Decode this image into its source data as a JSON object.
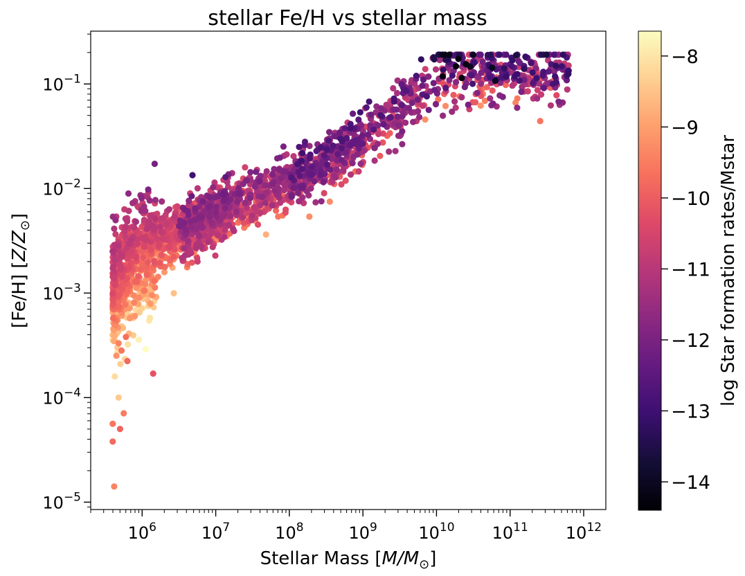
{
  "chart_data": {
    "type": "scatter",
    "title": "stellar Fe/H vs stellar mass",
    "xlabel": {
      "main": "Stellar Mass [",
      "italic": "M/M",
      "sub": "⊙",
      "close": "]"
    },
    "ylabel": {
      "main": "[Fe/H] [",
      "italic": "Z/Z",
      "sub": "⊙",
      "close": "]"
    },
    "xscale": "log",
    "yscale": "log",
    "xlim": [
      200000,
      2000000000000
    ],
    "ylim": [
      8.5e-06,
      0.32
    ],
    "x_ticks": [
      {
        "value": 1000000,
        "base": "10",
        "exp": "6"
      },
      {
        "value": 10000000,
        "base": "10",
        "exp": "7"
      },
      {
        "value": 100000000,
        "base": "10",
        "exp": "8"
      },
      {
        "value": 1000000000,
        "base": "10",
        "exp": "9"
      },
      {
        "value": 10000000000,
        "base": "10",
        "exp": "10"
      },
      {
        "value": 100000000000,
        "base": "10",
        "exp": "11"
      },
      {
        "value": 1000000000000,
        "base": "10",
        "exp": "12"
      }
    ],
    "y_ticks": [
      {
        "value": 1e-05,
        "base": "10",
        "exp": "−5"
      },
      {
        "value": 0.0001,
        "base": "10",
        "exp": "−4"
      },
      {
        "value": 0.001,
        "base": "10",
        "exp": "−3"
      },
      {
        "value": 0.01,
        "base": "10",
        "exp": "−2"
      },
      {
        "value": 0.1,
        "base": "10",
        "exp": "−1"
      }
    ],
    "colorbar": {
      "label": "log Star formation rates/Mstar",
      "colormap": "magma",
      "range": [
        -14.4,
        -7.65
      ],
      "ticks": [
        {
          "value": -8,
          "label": "−8"
        },
        {
          "value": -9,
          "label": "−9"
        },
        {
          "value": -10,
          "label": "−10"
        },
        {
          "value": -11,
          "label": "−11"
        },
        {
          "value": -12,
          "label": "−12"
        },
        {
          "value": -13,
          "label": "−13"
        },
        {
          "value": -14,
          "label": "−14"
        }
      ]
    },
    "magma_stops": [
      "#000004",
      "#140e36",
      "#3b0f70",
      "#641a80",
      "#8c2981",
      "#b73779",
      "#de4968",
      "#f7705c",
      "#fe9f6d",
      "#fecf92",
      "#fcfdbf"
    ],
    "trend": [
      [
        5.6,
        -3.0
      ],
      [
        5.8,
        -2.75
      ],
      [
        6.0,
        -2.6
      ],
      [
        6.3,
        -2.5
      ],
      [
        6.6,
        -2.4
      ],
      [
        7.0,
        -2.25
      ],
      [
        7.5,
        -2.1
      ],
      [
        8.0,
        -1.95
      ],
      [
        8.5,
        -1.75
      ],
      [
        9.0,
        -1.5
      ],
      [
        9.5,
        -1.25
      ],
      [
        9.8,
        -1.05
      ],
      [
        10.0,
        -0.9
      ],
      [
        10.3,
        -0.85
      ],
      [
        10.7,
        -0.85
      ],
      [
        11.0,
        -0.9
      ],
      [
        11.4,
        -0.9
      ],
      [
        11.8,
        -0.92
      ]
    ],
    "n_points": 2600,
    "outliers": [
      [
        5.62,
        -4.85,
        -9.4
      ],
      [
        5.68,
        -4.0,
        -8.4
      ],
      [
        5.6,
        -4.25,
        -9.6
      ],
      [
        5.6,
        -4.42,
        -9.8
      ],
      [
        5.75,
        -4.15,
        -9.5
      ],
      [
        5.7,
        -4.3,
        -9.9
      ],
      [
        6.15,
        -3.77,
        -10.2
      ],
      [
        5.65,
        -3.6,
        -9.2
      ],
      [
        5.72,
        -3.55,
        -9.6
      ],
      [
        5.8,
        -3.65,
        -9.8
      ],
      [
        5.68,
        -3.48,
        -9.4
      ],
      [
        5.78,
        -3.42,
        -9.7
      ]
    ]
  }
}
